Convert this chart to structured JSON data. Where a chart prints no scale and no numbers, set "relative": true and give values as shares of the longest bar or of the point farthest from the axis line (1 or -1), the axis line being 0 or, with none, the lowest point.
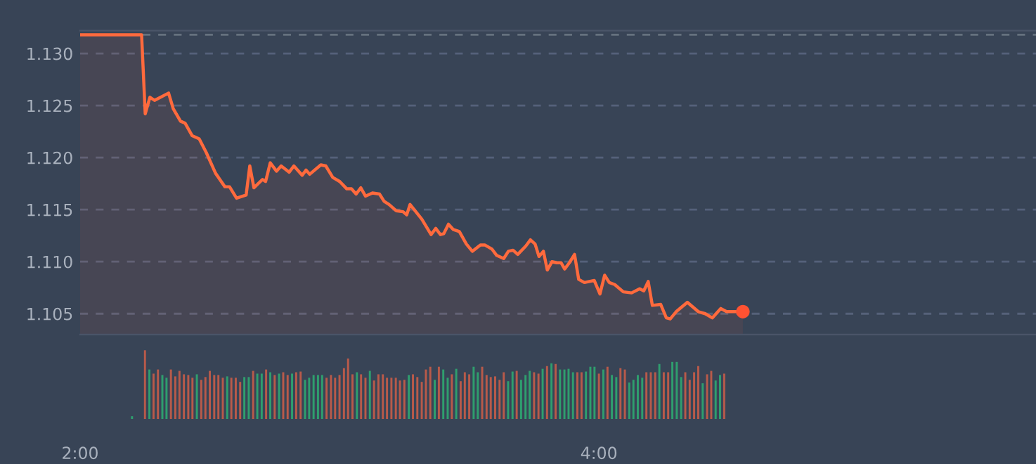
{
  "chart_data": [
    {
      "type": "area",
      "xlim": [
        2,
        5.685
      ],
      "ylim": [
        1.103,
        1.1322
      ],
      "yticks": [
        1.105,
        {
          "value": 1.11,
          "label": "1.110"
        },
        1.115,
        {
          "value": 1.12,
          "label": "1.120"
        },
        1.125,
        {
          "value": 1.13,
          "label": "1.130"
        }
      ],
      "tick_labels": "y",
      "grid": "y",
      "line_style": "solid",
      "ref_lines": [
        {
          "axis": "y",
          "value": 1.1318,
          "line_style": "dashed",
          "color": "#66727f"
        }
      ],
      "series": [
        {
          "type": "area",
          "color": "#ff6a3d",
          "x": [
            2.0,
            2.237,
            2.251,
            2.269,
            2.287,
            2.341,
            2.359,
            2.387,
            2.405,
            2.432,
            2.459,
            2.486,
            2.522,
            2.558,
            2.576,
            2.603,
            2.64,
            2.654,
            2.67,
            2.703,
            2.715,
            2.733,
            2.757,
            2.775,
            2.806,
            2.824,
            2.856,
            2.871,
            2.885,
            2.928,
            2.947,
            2.974,
            3.001,
            3.028,
            3.046,
            3.064,
            3.082,
            3.1,
            3.127,
            3.154,
            3.172,
            3.191,
            3.218,
            3.245,
            3.259,
            3.272,
            3.317,
            3.353,
            3.371,
            3.389,
            3.402,
            3.42,
            3.438,
            3.462,
            3.489,
            3.512,
            3.543,
            3.561,
            3.588,
            3.606,
            3.633,
            3.651,
            3.669,
            3.687,
            3.718,
            3.736,
            3.754,
            3.769,
            3.786,
            3.801,
            3.819,
            3.837,
            3.854,
            3.868,
            3.886,
            3.906,
            3.922,
            3.944,
            3.982,
            4.004,
            4.022,
            4.04,
            4.061,
            4.094,
            4.126,
            4.157,
            4.173,
            4.19,
            4.206,
            4.238,
            4.26,
            4.275,
            4.298,
            4.341,
            4.383,
            4.41,
            4.437,
            4.47,
            4.492,
            4.555
          ],
          "values": [
            1.1318,
            1.1318,
            1.1242,
            1.1258,
            1.1255,
            1.1262,
            1.1247,
            1.1235,
            1.1233,
            1.1221,
            1.1218,
            1.1205,
            1.1185,
            1.1172,
            1.1172,
            1.1161,
            1.1164,
            1.1192,
            1.1171,
            1.1179,
            1.1177,
            1.1195,
            1.1187,
            1.1192,
            1.1186,
            1.1192,
            1.1183,
            1.1188,
            1.1184,
            1.1193,
            1.1192,
            1.1181,
            1.1177,
            1.117,
            1.117,
            1.1165,
            1.1171,
            1.1163,
            1.1166,
            1.1165,
            1.1158,
            1.1155,
            1.1149,
            1.1148,
            1.1145,
            1.1155,
            1.1141,
            1.1126,
            1.1132,
            1.1126,
            1.1127,
            1.1136,
            1.1131,
            1.1129,
            1.1117,
            1.111,
            1.1116,
            1.1116,
            1.1112,
            1.1106,
            1.1103,
            1.111,
            1.1111,
            1.1107,
            1.1115,
            1.1121,
            1.1117,
            1.1105,
            1.111,
            1.1092,
            1.11,
            1.1099,
            1.1099,
            1.1093,
            1.1099,
            1.1107,
            1.1083,
            1.108,
            1.1082,
            1.1069,
            1.1087,
            1.108,
            1.1078,
            1.1071,
            1.107,
            1.1074,
            1.1072,
            1.1081,
            1.1058,
            1.1059,
            1.1046,
            1.1045,
            1.1052,
            1.1061,
            1.1052,
            1.105,
            1.1046,
            1.1055,
            1.1052,
            1.1052
          ]
        },
        {
          "type": "scatter",
          "marker": "circle",
          "color": "#ff5232",
          "x": [
            4.555
          ],
          "values": [
            1.1052
          ]
        }
      ]
    },
    {
      "type": "bar",
      "relative": true,
      "xlim": [
        2,
        5.685
      ],
      "xticks": [
        {
          "value": 2,
          "label": "2:00"
        },
        {
          "value": 4,
          "label": "4:00"
        }
      ],
      "tick_labels": "x",
      "x": [
        2.2,
        2.25,
        2.267,
        2.283,
        2.3,
        2.317,
        2.333,
        2.35,
        2.367,
        2.383,
        2.4,
        2.417,
        2.433,
        2.45,
        2.467,
        2.483,
        2.5,
        2.517,
        2.533,
        2.55,
        2.567,
        2.583,
        2.6,
        2.617,
        2.633,
        2.65,
        2.667,
        2.683,
        2.7,
        2.717,
        2.733,
        2.75,
        2.767,
        2.783,
        2.8,
        2.817,
        2.833,
        2.85,
        2.867,
        2.883,
        2.9,
        2.917,
        2.933,
        2.95,
        2.967,
        2.983,
        3.0,
        3.017,
        3.033,
        3.05,
        3.067,
        3.083,
        3.1,
        3.117,
        3.133,
        3.15,
        3.167,
        3.183,
        3.2,
        3.217,
        3.233,
        3.25,
        3.267,
        3.283,
        3.3,
        3.317,
        3.333,
        3.35,
        3.367,
        3.383,
        3.4,
        3.417,
        3.433,
        3.45,
        3.467,
        3.483,
        3.5,
        3.517,
        3.533,
        3.55,
        3.567,
        3.583,
        3.6,
        3.617,
        3.633,
        3.65,
        3.667,
        3.683,
        3.7,
        3.717,
        3.733,
        3.75,
        3.767,
        3.783,
        3.8,
        3.817,
        3.833,
        3.85,
        3.867,
        3.883,
        3.9,
        3.917,
        3.933,
        3.95,
        3.967,
        3.983,
        4.0,
        4.017,
        4.033,
        4.05,
        4.067,
        4.083,
        4.1,
        4.117,
        4.133,
        4.15,
        4.167,
        4.183,
        4.2,
        4.217,
        4.233,
        4.25,
        4.267,
        4.283,
        4.3,
        4.317,
        4.333,
        4.35,
        4.367,
        4.383,
        4.4,
        4.417,
        4.433,
        4.45,
        4.467,
        4.483
      ],
      "values": [
        0.04,
        1.0,
        0.72,
        0.66,
        0.72,
        0.64,
        0.6,
        0.72,
        0.62,
        0.7,
        0.65,
        0.64,
        0.6,
        0.65,
        0.57,
        0.61,
        0.7,
        0.64,
        0.64,
        0.6,
        0.62,
        0.6,
        0.6,
        0.54,
        0.61,
        0.61,
        0.7,
        0.66,
        0.66,
        0.72,
        0.68,
        0.64,
        0.66,
        0.68,
        0.64,
        0.66,
        0.68,
        0.69,
        0.57,
        0.6,
        0.64,
        0.64,
        0.64,
        0.6,
        0.64,
        0.6,
        0.64,
        0.74,
        0.88,
        0.65,
        0.68,
        0.65,
        0.6,
        0.7,
        0.56,
        0.65,
        0.65,
        0.6,
        0.6,
        0.6,
        0.56,
        0.57,
        0.64,
        0.65,
        0.61,
        0.54,
        0.72,
        0.76,
        0.57,
        0.76,
        0.72,
        0.6,
        0.65,
        0.73,
        0.55,
        0.68,
        0.65,
        0.76,
        0.68,
        0.76,
        0.64,
        0.61,
        0.62,
        0.57,
        0.68,
        0.55,
        0.69,
        0.7,
        0.57,
        0.64,
        0.7,
        0.68,
        0.66,
        0.73,
        0.77,
        0.81,
        0.8,
        0.72,
        0.72,
        0.73,
        0.68,
        0.68,
        0.68,
        0.69,
        0.76,
        0.76,
        0.66,
        0.72,
        0.76,
        0.64,
        0.61,
        0.74,
        0.72,
        0.53,
        0.57,
        0.64,
        0.6,
        0.68,
        0.68,
        0.68,
        0.8,
        0.68,
        0.68,
        0.83,
        0.83,
        0.61,
        0.68,
        0.57,
        0.68,
        0.77,
        0.52,
        0.65,
        0.7,
        0.56,
        0.64,
        0.66
      ],
      "colors": [
        "#2f9e6e",
        "#b85a4a",
        "#2f9e6e",
        "#b85a4a",
        "#b85a4a",
        "#2f9e6e",
        "#2f9e6e",
        "#b85a4a",
        "#b85a4a",
        "#b85a4a",
        "#b85a4a",
        "#b85a4a",
        "#b85a4a",
        "#2f9e6e",
        "#b85a4a",
        "#b85a4a",
        "#b85a4a",
        "#b85a4a",
        "#b85a4a",
        "#b85a4a",
        "#2f9e6e",
        "#b85a4a",
        "#b85a4a",
        "#b85a4a",
        "#2f9e6e",
        "#2f9e6e",
        "#b85a4a",
        "#2f9e6e",
        "#2f9e6e",
        "#b85a4a",
        "#2f9e6e",
        "#b85a4a",
        "#2f9e6e",
        "#b85a4a",
        "#b85a4a",
        "#2f9e6e",
        "#b85a4a",
        "#b85a4a",
        "#2f9e6e",
        "#2f9e6e",
        "#2f9e6e",
        "#2f9e6e",
        "#2f9e6e",
        "#b85a4a",
        "#b85a4a",
        "#b85a4a",
        "#b85a4a",
        "#b85a4a",
        "#b85a4a",
        "#b85a4a",
        "#2f9e6e",
        "#b85a4a",
        "#b85a4a",
        "#2f9e6e",
        "#b85a4a",
        "#b85a4a",
        "#b85a4a",
        "#b85a4a",
        "#b85a4a",
        "#b85a4a",
        "#b85a4a",
        "#b85a4a",
        "#2f9e6e",
        "#b85a4a",
        "#b85a4a",
        "#b85a4a",
        "#b85a4a",
        "#b85a4a",
        "#2f9e6e",
        "#b85a4a",
        "#2f9e6e",
        "#2f9e6e",
        "#b85a4a",
        "#2f9e6e",
        "#b85a4a",
        "#b85a4a",
        "#b85a4a",
        "#2f9e6e",
        "#2f9e6e",
        "#b85a4a",
        "#b85a4a",
        "#b85a4a",
        "#b85a4a",
        "#b85a4a",
        "#b85a4a",
        "#2f9e6e",
        "#2f9e6e",
        "#b85a4a",
        "#2f9e6e",
        "#2f9e6e",
        "#2f9e6e",
        "#b85a4a",
        "#b85a4a",
        "#2f9e6e",
        "#b85a4a",
        "#2f9e6e",
        "#b85a4a",
        "#2f9e6e",
        "#2f9e6e",
        "#2f9e6e",
        "#2f9e6e",
        "#b85a4a",
        "#b85a4a",
        "#2f9e6e",
        "#2f9e6e",
        "#2f9e6e",
        "#b85a4a",
        "#2f9e6e",
        "#b85a4a",
        "#2f9e6e",
        "#2f9e6e",
        "#b85a4a",
        "#b85a4a",
        "#2f9e6e",
        "#2f9e6e",
        "#2f9e6e",
        "#2f9e6e",
        "#b85a4a",
        "#b85a4a",
        "#b85a4a",
        "#2f9e6e",
        "#b85a4a",
        "#b85a4a",
        "#2f9e6e",
        "#2f9e6e",
        "#2f9e6e",
        "#b85a4a",
        "#b85a4a",
        "#b85a4a",
        "#b85a4a",
        "#2f9e6e",
        "#b85a4a",
        "#b85a4a",
        "#2f9e6e",
        "#2f9e6e",
        "#b85a4a"
      ]
    }
  ]
}
